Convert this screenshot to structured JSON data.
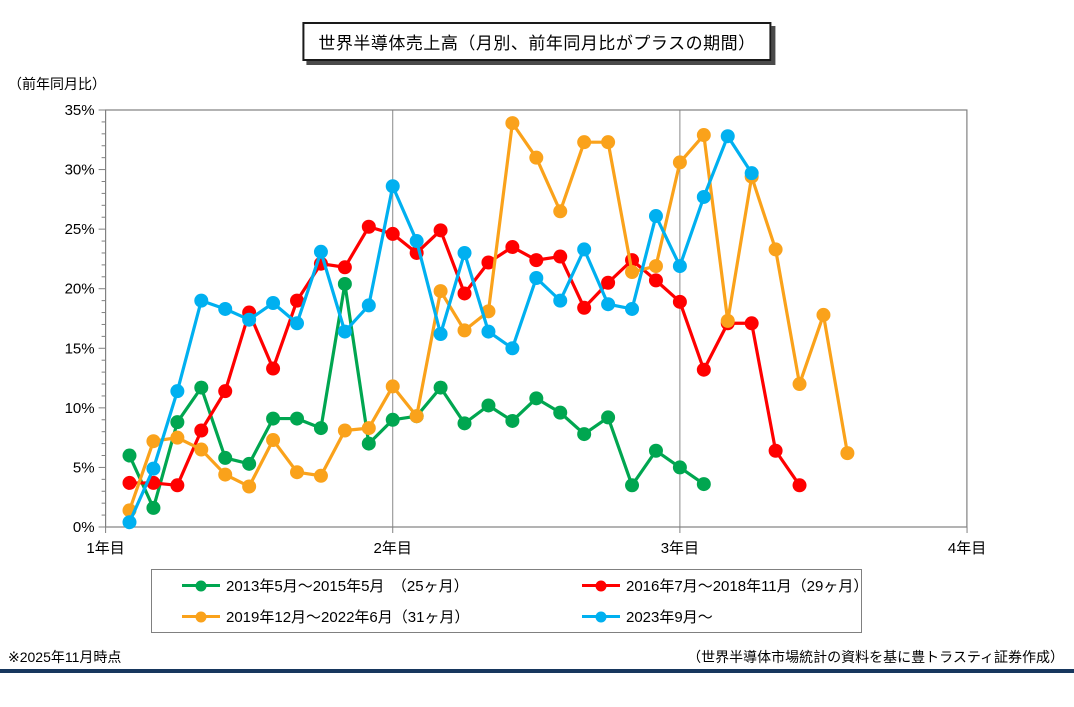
{
  "title": "世界半導体売上高（月別、前年同月比がプラスの期間）",
  "footnotes": {
    "left": "※2025年11月時点",
    "right": "（世界半導体市場統計の資料を基に豊トラスティ証券作成）"
  },
  "chart_data": {
    "type": "line",
    "title": "世界半導体売上高（月別、前年同月比がプラスの期間）",
    "xlabel": "",
    "ylabel": "（前年同月比）",
    "ylim": [
      0,
      35
    ],
    "y_major_step": 5,
    "y_minor_step": 1,
    "grid": "vertical-year-lines-only",
    "legend_position": "bottom",
    "y_tick_labels": [
      "0%",
      "5%",
      "10%",
      "15%",
      "20%",
      "25%",
      "30%",
      "35%"
    ],
    "x_tick_labels": [
      "1年目",
      "2年目",
      "3年目",
      "4年目"
    ],
    "x_unit": "month-within-period",
    "series": [
      {
        "name": "2013年5月～2015年5月　（25ヶ月）",
        "color": "#00A650",
        "values": [
          6.0,
          1.6,
          8.8,
          11.7,
          5.8,
          5.3,
          9.1,
          9.1,
          8.3,
          20.4,
          7.0,
          9.0,
          9.3,
          11.7,
          8.7,
          10.2,
          8.9,
          10.8,
          9.6,
          7.8,
          9.2,
          3.5,
          6.4,
          5.0,
          3.6
        ]
      },
      {
        "name": "2016年7月～2018年11月（29ヶ月）",
        "color": "#FF0000",
        "values": [
          3.7,
          3.7,
          3.5,
          8.1,
          11.4,
          18.0,
          13.3,
          19.0,
          22.1,
          21.8,
          25.2,
          24.6,
          23.0,
          24.9,
          19.6,
          22.2,
          23.5,
          22.4,
          22.7,
          18.4,
          20.5,
          22.4,
          20.7,
          18.9,
          13.2,
          17.1,
          17.1,
          6.4,
          3.5
        ]
      },
      {
        "name": "2019年12月～2022年6月（31ヶ月）",
        "color": "#FAA21B",
        "values": [
          1.4,
          7.2,
          7.5,
          6.5,
          4.4,
          3.4,
          7.3,
          4.6,
          4.3,
          8.1,
          8.3,
          11.8,
          9.3,
          19.8,
          16.5,
          18.1,
          33.9,
          31.0,
          26.5,
          32.3,
          32.3,
          21.4,
          21.9,
          30.6,
          32.9,
          17.3,
          29.4,
          23.3,
          12.0,
          17.8,
          6.2
        ]
      },
      {
        "name": "2023年9月～",
        "color": "#00B0F0",
        "values": [
          0.4,
          4.9,
          11.4,
          19.0,
          18.3,
          17.4,
          18.8,
          17.1,
          23.1,
          16.4,
          18.6,
          28.6,
          24.0,
          16.2,
          23.0,
          16.4,
          15.0,
          20.9,
          19.0,
          23.3,
          18.7,
          18.3,
          26.1,
          21.9,
          27.7,
          32.8,
          29.7
        ]
      }
    ]
  }
}
